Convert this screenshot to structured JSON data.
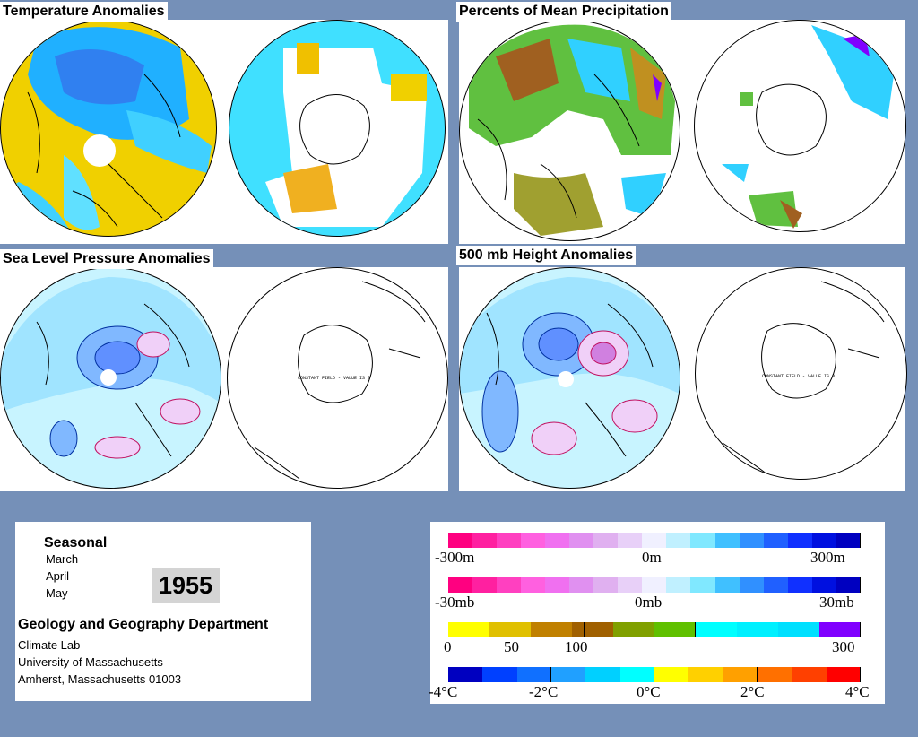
{
  "panels": {
    "temperature": {
      "title": "Temperature Anomalies"
    },
    "precipitation": {
      "title": "Percents of Mean Precipitation"
    },
    "slp": {
      "title": "Sea Level Pressure Anomalies",
      "south_note": "CONSTANT FIELD - VALUE IS 0"
    },
    "height500": {
      "title": "500 mb Height Anomalies",
      "south_note": "CONSTANT FIELD - VALUE IS 0"
    }
  },
  "info": {
    "period_type": "Seasonal",
    "months": [
      "March",
      "April",
      "May"
    ],
    "year": "1955",
    "department": "Geology and Geography Department",
    "address_lines": [
      "Climate Lab",
      "University of Massachusetts",
      "Amherst, Massachusetts 01003"
    ]
  },
  "legends": {
    "height": {
      "labels": [
        "-300m",
        "0m",
        "300m"
      ],
      "colors": [
        "#ff0080",
        "#ff20a0",
        "#ff40c0",
        "#ff60e0",
        "#f070f0",
        "#e090f0",
        "#e0b0f0",
        "#e8d0f8",
        "#f0f0ff",
        "#c0f0ff",
        "#80e8ff",
        "#40c0ff",
        "#3090ff",
        "#2060ff",
        "#1030ff",
        "#0010e0",
        "#0000c0"
      ]
    },
    "pressure": {
      "labels": [
        "-30mb",
        "0mb",
        "30mb"
      ],
      "colors": [
        "#ff0080",
        "#ff20a0",
        "#ff40c0",
        "#ff60e0",
        "#f070f0",
        "#e090f0",
        "#e0b0f0",
        "#e8d0f8",
        "#f0f0ff",
        "#c0f0ff",
        "#80e8ff",
        "#40c0ff",
        "#3090ff",
        "#2060ff",
        "#1030ff",
        "#0010e0",
        "#0000c0"
      ]
    },
    "precip": {
      "labels": [
        "0",
        "50",
        "100",
        "300"
      ],
      "colors": [
        "#ffff00",
        "#e0c000",
        "#c08000",
        "#a06000",
        "#80a000",
        "#60c000",
        "#00ffff",
        "#00f0ff",
        "#00e0ff",
        "#8000ff"
      ]
    },
    "temp": {
      "labels": [
        "-4°C",
        "-2°C",
        "0°C",
        "2°C",
        "4°C"
      ],
      "colors": [
        "#0000c0",
        "#0040ff",
        "#1070ff",
        "#20a0ff",
        "#00d0ff",
        "#00ffff",
        "#ffff00",
        "#ffd000",
        "#ffa000",
        "#ff7000",
        "#ff4000",
        "#ff0000"
      ]
    }
  },
  "colors": {
    "background": "#7590b8",
    "panel": "#ffffff"
  }
}
